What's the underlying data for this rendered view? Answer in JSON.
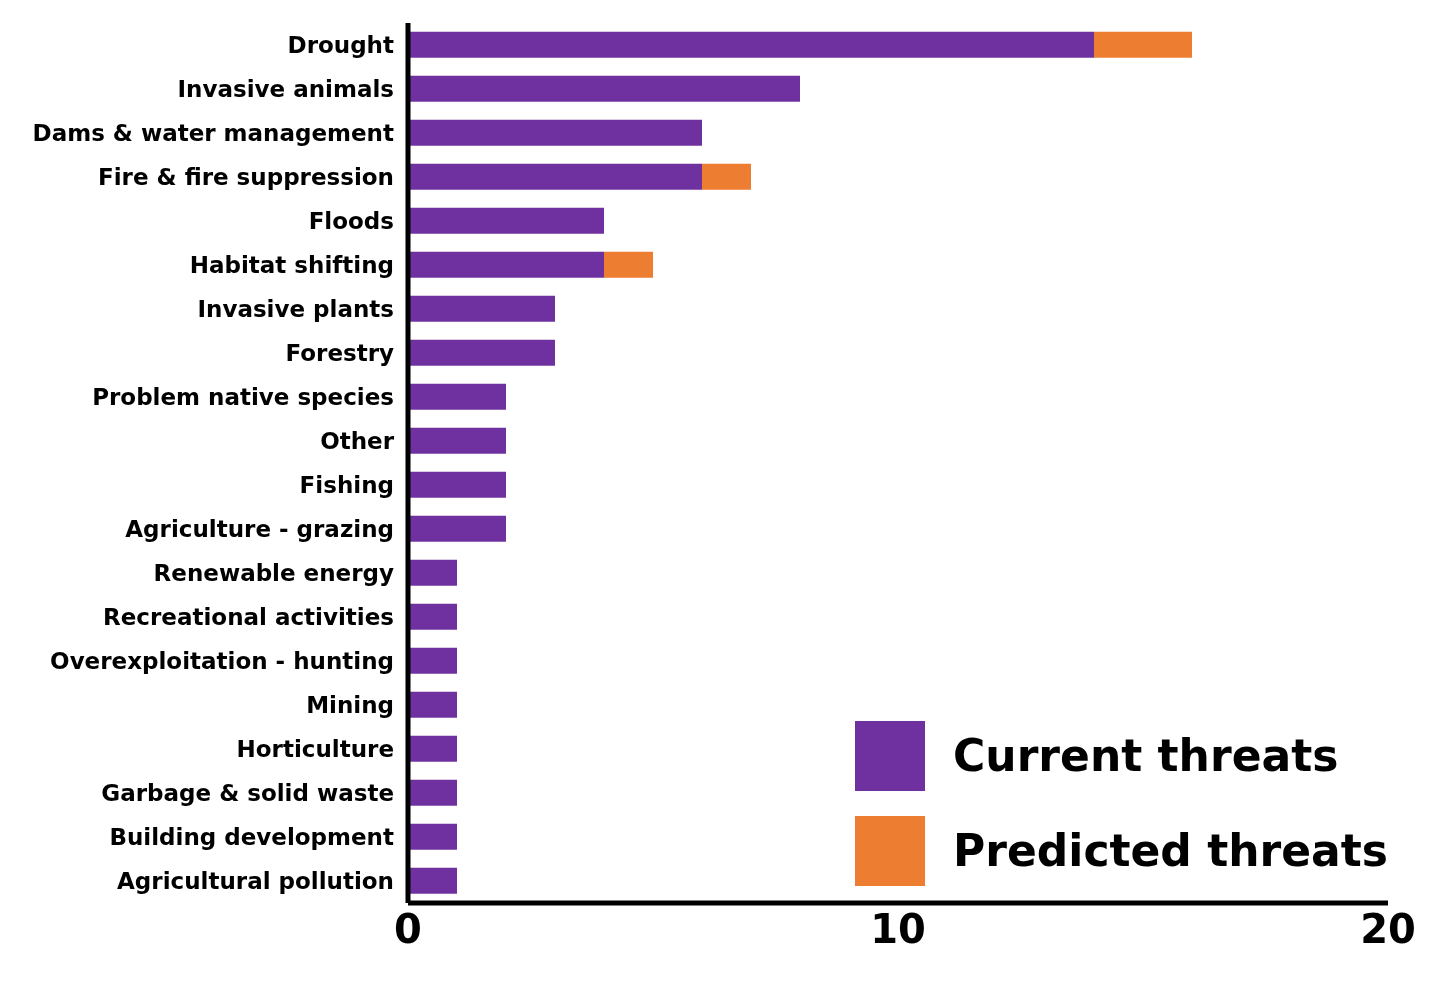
{
  "chart_data": {
    "type": "bar",
    "orientation": "horizontal",
    "stacked": true,
    "categories": [
      "Drought",
      "Invasive animals",
      "Dams & water management",
      "Fire & fire suppression",
      "Floods",
      "Habitat shifting",
      "Invasive plants",
      "Forestry",
      "Problem native species",
      "Other",
      "Fishing",
      "Agriculture - grazing",
      "Renewable energy",
      "Recreational activities",
      "Overexploitation - hunting",
      "Mining",
      "Horticulture",
      "Garbage & solid waste",
      "Building development",
      "Agricultural pollution"
    ],
    "series": [
      {
        "name": "Current threats",
        "color": "#6f31a0",
        "values": [
          14,
          8,
          6,
          6,
          4,
          4,
          3,
          3,
          2,
          2,
          2,
          2,
          1,
          1,
          1,
          1,
          1,
          1,
          1,
          1
        ]
      },
      {
        "name": "Predicted threats",
        "color": "#ec7d31",
        "values": [
          2,
          0,
          0,
          1,
          0,
          1,
          0,
          0,
          0,
          0,
          0,
          0,
          0,
          0,
          0,
          0,
          0,
          0,
          0,
          0
        ]
      }
    ],
    "xlim": [
      0,
      20
    ],
    "xticks": [
      0,
      10,
      20
    ],
    "grid": false,
    "legend": "bottom right"
  }
}
